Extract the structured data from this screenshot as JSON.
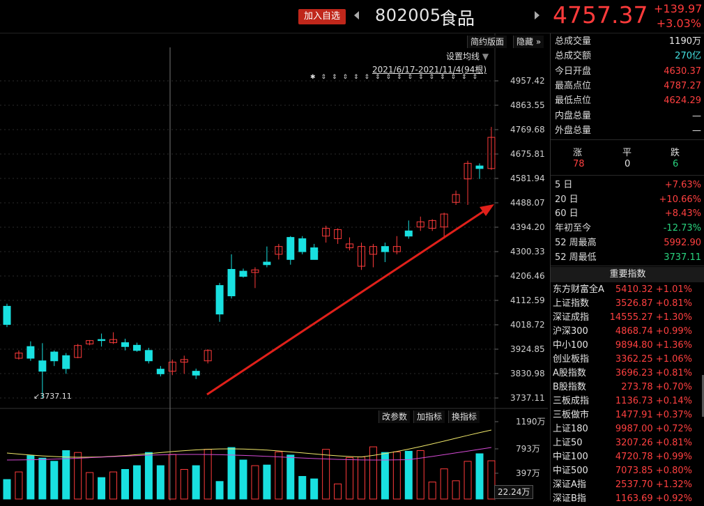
{
  "header": {
    "add_watchlist": "加入自选",
    "code": "802005",
    "name": "食品",
    "price": "4757.37",
    "change": "+139.97",
    "change_pct": "+3.03%"
  },
  "chart_toolbar": {
    "compact": "简约版面",
    "hide": "隐藏",
    "ma_setting": "设置均线",
    "range": "2021/6/17-2021/11/4(94根)",
    "low_marker": "3737.11",
    "indicator_buttons": [
      "改参数",
      "加指标",
      "换指标"
    ]
  },
  "chart_data": {
    "type": "candlestick",
    "y_ticks": [
      "4957.42",
      "4863.55",
      "4769.68",
      "4675.81",
      "4581.94",
      "4488.07",
      "4394.20",
      "4300.33",
      "4206.46",
      "4112.59",
      "4018.72",
      "3924.85",
      "3830.98",
      "3737.11"
    ],
    "ylim": [
      3737.11,
      4957.42
    ],
    "volume_ticks": [
      "1190万",
      "793万",
      "397万"
    ],
    "volume_unit_box": "22.24万",
    "candles": [
      [
        4090,
        4020,
        4100,
        4010
      ],
      [
        3890,
        3910,
        3920,
        3885
      ],
      [
        3935,
        3890,
        3955,
        3880
      ],
      [
        3880,
        3840,
        3948,
        3737.11
      ],
      [
        3914,
        3880,
        3920,
        3860
      ],
      [
        3900,
        3850,
        3910,
        3830
      ],
      [
        3893,
        3939,
        3945,
        3890
      ],
      [
        3945,
        3958,
        3960,
        3940
      ],
      [
        3962,
        3958,
        3985,
        3935
      ],
      [
        3950,
        3962,
        3990,
        3945
      ],
      [
        3950,
        3935,
        3965,
        3920
      ],
      [
        3940,
        3920,
        3950,
        3915
      ],
      [
        3920,
        3880,
        3930,
        3870
      ],
      [
        3848,
        3830,
        3860,
        3820
      ],
      [
        3840,
        3875,
        3885,
        3825
      ],
      [
        3875,
        3885,
        3900,
        3830
      ],
      [
        3840,
        3825,
        3850,
        3810
      ],
      [
        3880,
        3920,
        3925,
        3870
      ],
      [
        4170,
        4060,
        4180,
        4030
      ],
      [
        4232,
        4130,
        4290,
        4120
      ],
      [
        4225,
        4205,
        4235,
        4200
      ],
      [
        4220,
        4230,
        4240,
        4160
      ],
      [
        4260,
        4250,
        4320,
        4240
      ],
      [
        4290,
        4320,
        4330,
        4270
      ],
      [
        4355,
        4270,
        4360,
        4250
      ],
      [
        4350,
        4300,
        4360,
        4290
      ],
      [
        4315,
        4270,
        4330,
        4270
      ],
      [
        4360,
        4390,
        4400,
        4335
      ],
      [
        4350,
        4385,
        4390,
        4330
      ],
      [
        4315,
        4330,
        4355,
        4305
      ],
      [
        4244,
        4320,
        4335,
        4230
      ],
      [
        4290,
        4320,
        4330,
        4240
      ],
      [
        4320,
        4300,
        4335,
        4260
      ],
      [
        4300,
        4320,
        4360,
        4290
      ],
      [
        4380,
        4360,
        4420,
        4350
      ],
      [
        4395,
        4415,
        4435,
        4380
      ],
      [
        4390,
        4420,
        4425,
        4380
      ],
      [
        4395,
        4445,
        4450,
        4350
      ],
      [
        4490,
        4520,
        4535,
        4480
      ],
      [
        4580,
        4640,
        4650,
        4480
      ],
      [
        4630,
        4620,
        4640,
        4580
      ],
      [
        4620,
        4740,
        4780,
        4615
      ]
    ]
  },
  "panel": {
    "stats": [
      {
        "label": "总成交量",
        "value": "1190万",
        "color": "white"
      },
      {
        "label": "总成交额",
        "value": "270亿",
        "color": "cyan"
      },
      {
        "label": "今日开盘",
        "value": "4630.37",
        "color": "red"
      },
      {
        "label": "最高点位",
        "value": "4787.27",
        "color": "red"
      },
      {
        "label": "最低点位",
        "value": "4624.29",
        "color": "red"
      },
      {
        "label": "内盘总量",
        "value": "—",
        "color": "white"
      },
      {
        "label": "外盘总量",
        "value": "—",
        "color": "white"
      }
    ],
    "breadth": {
      "up_label": "涨",
      "flat_label": "平",
      "down_label": "跌",
      "up": "78",
      "flat": "0",
      "down": "6"
    },
    "periods": [
      {
        "label": "5 日",
        "value": "+7.63%",
        "color": "red"
      },
      {
        "label": "20 日",
        "value": "+10.66%",
        "color": "red"
      },
      {
        "label": "60 日",
        "value": "+8.43%",
        "color": "red"
      },
      {
        "label": "年初至今",
        "value": "-12.73%",
        "color": "green"
      },
      {
        "label": "52 周最高",
        "value": "5992.90",
        "color": "red"
      },
      {
        "label": "52 周最低",
        "value": "3737.11",
        "color": "green"
      }
    ],
    "index_header": "重要指数",
    "indices": [
      {
        "name": "东方财富全A",
        "value": "5410.32 +1.01%"
      },
      {
        "name": "上证指数",
        "value": "3526.87 +0.81%"
      },
      {
        "name": "深证成指",
        "value": "14555.27 +1.30%"
      },
      {
        "name": "沪深300",
        "value": "4868.74 +0.99%"
      },
      {
        "name": "中小100",
        "value": "9894.80 +1.36%"
      },
      {
        "name": "创业板指",
        "value": "3362.25 +1.06%"
      },
      {
        "name": "A股指数",
        "value": "3696.23 +0.81%"
      },
      {
        "name": "B股指数",
        "value": "273.78 +0.70%"
      },
      {
        "name": "三板成指",
        "value": "1136.73 +0.14%"
      },
      {
        "name": "三板做市",
        "value": "1477.91 +0.37%"
      },
      {
        "name": "上证180",
        "value": "9987.00 +0.72%"
      },
      {
        "name": "上证50",
        "value": "3207.26 +0.81%"
      },
      {
        "name": "中证100",
        "value": "4720.78 +0.99%"
      },
      {
        "name": "中证500",
        "value": "7073.85 +0.80%"
      },
      {
        "name": "深证A指",
        "value": "2537.70 +1.32%"
      },
      {
        "name": "深证B指",
        "value": "1163.69 +0.92%"
      }
    ]
  }
}
